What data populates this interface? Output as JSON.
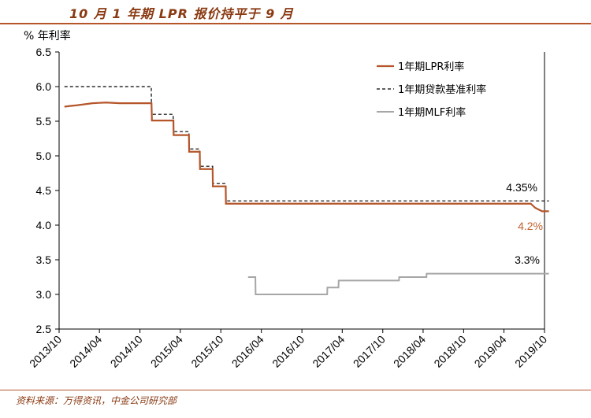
{
  "header": {
    "title": "10 月 1 年期 LPR 报价持平于 9 月"
  },
  "footer": {
    "source": "资料来源：万得资讯，中金公司研究部"
  },
  "colors": {
    "lpr": "#b5552a",
    "base_rate": "#000000",
    "mlf": "#a6a6a6",
    "lpr_annotation": "#c0602e",
    "accent": "#8a3a12"
  },
  "chart_data": {
    "type": "line",
    "title": "",
    "ylabel": "% 年利率",
    "xlabel": "",
    "ylim": [
      2.5,
      6.5
    ],
    "yticks": [
      "2.5",
      "3.0",
      "3.5",
      "4.0",
      "4.5",
      "5.0",
      "5.5",
      "6.0",
      "6.5"
    ],
    "xlim": [
      "2013-10",
      "2019-10"
    ],
    "xticks": [
      "2013/10",
      "2014/04",
      "2014/10",
      "2015/04",
      "2015/10",
      "2016/04",
      "2016/10",
      "2017/04",
      "2017/10",
      "2018/04",
      "2018/10",
      "2019/04",
      "2019/10"
    ],
    "grid": false,
    "legend_position": "top-right",
    "series": [
      {
        "name": "1年期LPR利率",
        "style": "solid",
        "points": [
          [
            "2013-10-25",
            5.71
          ],
          [
            "2013-11-20",
            5.72
          ],
          [
            "2013-12-20",
            5.73
          ],
          [
            "2014-03-01",
            5.76
          ],
          [
            "2014-05-01",
            5.77
          ],
          [
            "2014-07-01",
            5.76
          ],
          [
            "2014-11-22",
            5.76
          ],
          [
            "2014-11-24",
            5.51
          ],
          [
            "2015-03-01",
            5.51
          ],
          [
            "2015-03-02",
            5.3
          ],
          [
            "2015-05-10",
            5.3
          ],
          [
            "2015-05-11",
            5.06
          ],
          [
            "2015-06-28",
            5.06
          ],
          [
            "2015-06-29",
            4.81
          ],
          [
            "2015-08-25",
            4.81
          ],
          [
            "2015-08-26",
            4.56
          ],
          [
            "2015-10-23",
            4.56
          ],
          [
            "2015-10-24",
            4.31
          ],
          [
            "2019-07-31",
            4.31
          ],
          [
            "2019-08-20",
            4.25
          ],
          [
            "2019-09-20",
            4.2
          ],
          [
            "2019-10-21",
            4.2
          ]
        ],
        "annotation": "4.2%"
      },
      {
        "name": "1年期贷款基准利率",
        "style": "dashed",
        "points": [
          [
            "2013-10-25",
            6.0
          ],
          [
            "2014-11-21",
            6.0
          ],
          [
            "2014-11-22",
            5.6
          ],
          [
            "2015-02-28",
            5.6
          ],
          [
            "2015-03-01",
            5.35
          ],
          [
            "2015-05-10",
            5.35
          ],
          [
            "2015-05-11",
            5.1
          ],
          [
            "2015-06-27",
            5.1
          ],
          [
            "2015-06-28",
            4.85
          ],
          [
            "2015-08-25",
            4.85
          ],
          [
            "2015-08-26",
            4.6
          ],
          [
            "2015-10-23",
            4.6
          ],
          [
            "2015-10-24",
            4.35
          ],
          [
            "2019-10-21",
            4.35
          ]
        ],
        "annotation": "4.35%"
      },
      {
        "name": "1年期MLF利率",
        "style": "solid",
        "points": [
          [
            "2016-02-01",
            3.25
          ],
          [
            "2016-03-05",
            3.25
          ],
          [
            "2016-03-06",
            3.0
          ],
          [
            "2017-01-23",
            3.0
          ],
          [
            "2017-01-24",
            3.1
          ],
          [
            "2017-03-15",
            3.1
          ],
          [
            "2017-03-16",
            3.2
          ],
          [
            "2017-12-13",
            3.2
          ],
          [
            "2017-12-14",
            3.25
          ],
          [
            "2018-04-16",
            3.25
          ],
          [
            "2018-04-17",
            3.3
          ],
          [
            "2019-10-21",
            3.3
          ]
        ],
        "annotation": "3.3%"
      }
    ]
  }
}
